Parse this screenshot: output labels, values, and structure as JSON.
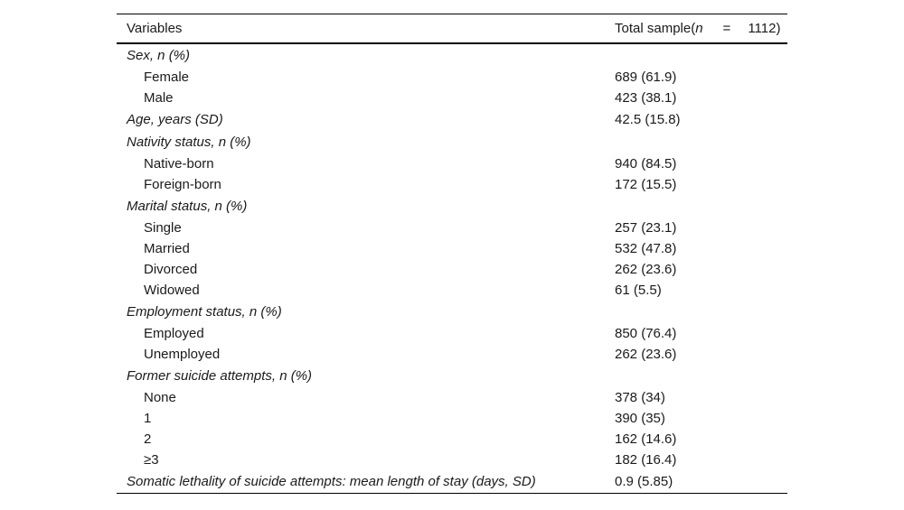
{
  "header": {
    "variables": "Variables",
    "total_prefix": "Total sample(",
    "total_n": "n",
    "total_eq": "=",
    "total_value": "1112)"
  },
  "rows": [
    {
      "label": "Sex, n (%)",
      "value": ""
    },
    {
      "label": "Female",
      "value": "689 (61.9)"
    },
    {
      "label": "Male",
      "value": "423 (38.1)"
    },
    {
      "label": "Age, years (SD)",
      "value": "42.5 (15.8)"
    },
    {
      "label": "Nativity status, n (%)",
      "value": ""
    },
    {
      "label": "Native-born",
      "value": "940 (84.5)"
    },
    {
      "label": "Foreign-born",
      "value": "172 (15.5)"
    },
    {
      "label": "Marital status, n (%)",
      "value": ""
    },
    {
      "label": "Single",
      "value": "257 (23.1)"
    },
    {
      "label": "Married",
      "value": "532 (47.8)"
    },
    {
      "label": "Divorced",
      "value": "262 (23.6)"
    },
    {
      "label": "Widowed",
      "value": "61 (5.5)"
    },
    {
      "label": "Employment status, n (%)",
      "value": ""
    },
    {
      "label": "Employed",
      "value": "850 (76.4)"
    },
    {
      "label": "Unemployed",
      "value": "262 (23.6)"
    },
    {
      "label": "Former suicide attempts, n (%)",
      "value": ""
    },
    {
      "label": "None",
      "value": "378 (34)"
    },
    {
      "label": "1",
      "value": "390 (35)"
    },
    {
      "label": "2",
      "value": "162 (14.6)"
    },
    {
      "label": "≥3",
      "value": "182 (16.4)"
    },
    {
      "label": "Somatic lethality of suicide attempts: mean length of stay (days, SD)",
      "value": "0.9 (5.85)"
    }
  ]
}
